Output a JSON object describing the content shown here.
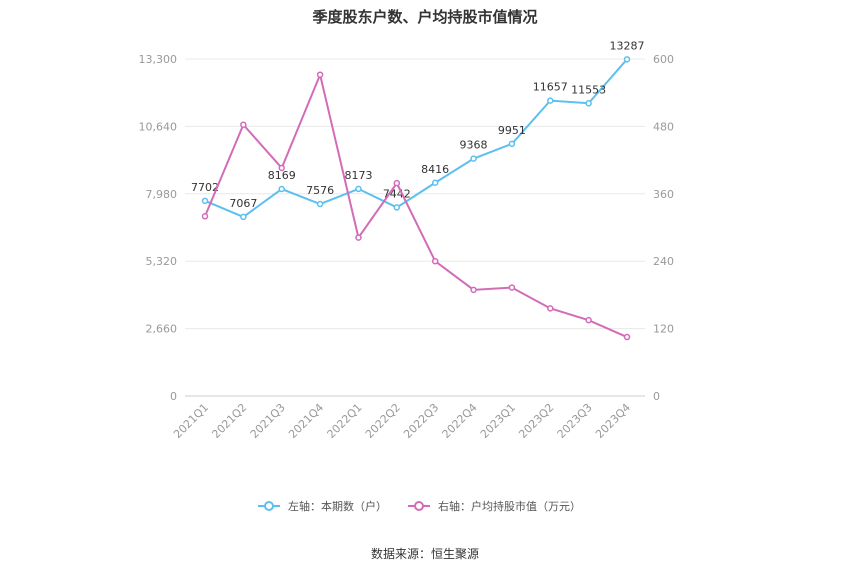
{
  "title": "季度股东户数、户均持股市值情况",
  "source": "数据来源：恒生聚源",
  "chart_data": {
    "type": "line",
    "categories": [
      "2021Q1",
      "2021Q2",
      "2021Q3",
      "2021Q4",
      "2022Q1",
      "2022Q2",
      "2022Q3",
      "2022Q4",
      "2023Q1",
      "2023Q2",
      "2023Q3",
      "2023Q4"
    ],
    "y_left": {
      "ticks": [
        "0",
        "2,660",
        "5,320",
        "7,980",
        "10,640",
        "13,300"
      ],
      "lim": [
        0,
        13300
      ]
    },
    "y_right": {
      "ticks": [
        "0",
        "120",
        "240",
        "360",
        "480",
        "600"
      ],
      "lim": [
        0,
        600
      ]
    },
    "series": [
      {
        "name": "左轴：本期数（户）",
        "axis": "left",
        "color": "#5bc0f0",
        "values": [
          7702,
          7067,
          8169,
          7576,
          8173,
          7442,
          8416,
          9368,
          9951,
          11657,
          11553,
          13287
        ],
        "labels": [
          "7702",
          "7067",
          "8169",
          "7576",
          "8173",
          "7442",
          "8416",
          "9368",
          "9951",
          "11657",
          "11553",
          "13287"
        ]
      },
      {
        "name": "右轴：户均持股市值（万元）",
        "axis": "right",
        "color": "#d36cb8",
        "values": [
          320,
          483,
          406,
          572,
          282,
          379,
          240,
          189,
          193,
          156,
          135,
          105
        ]
      }
    ],
    "grid": true,
    "legend": "bottom-center"
  }
}
